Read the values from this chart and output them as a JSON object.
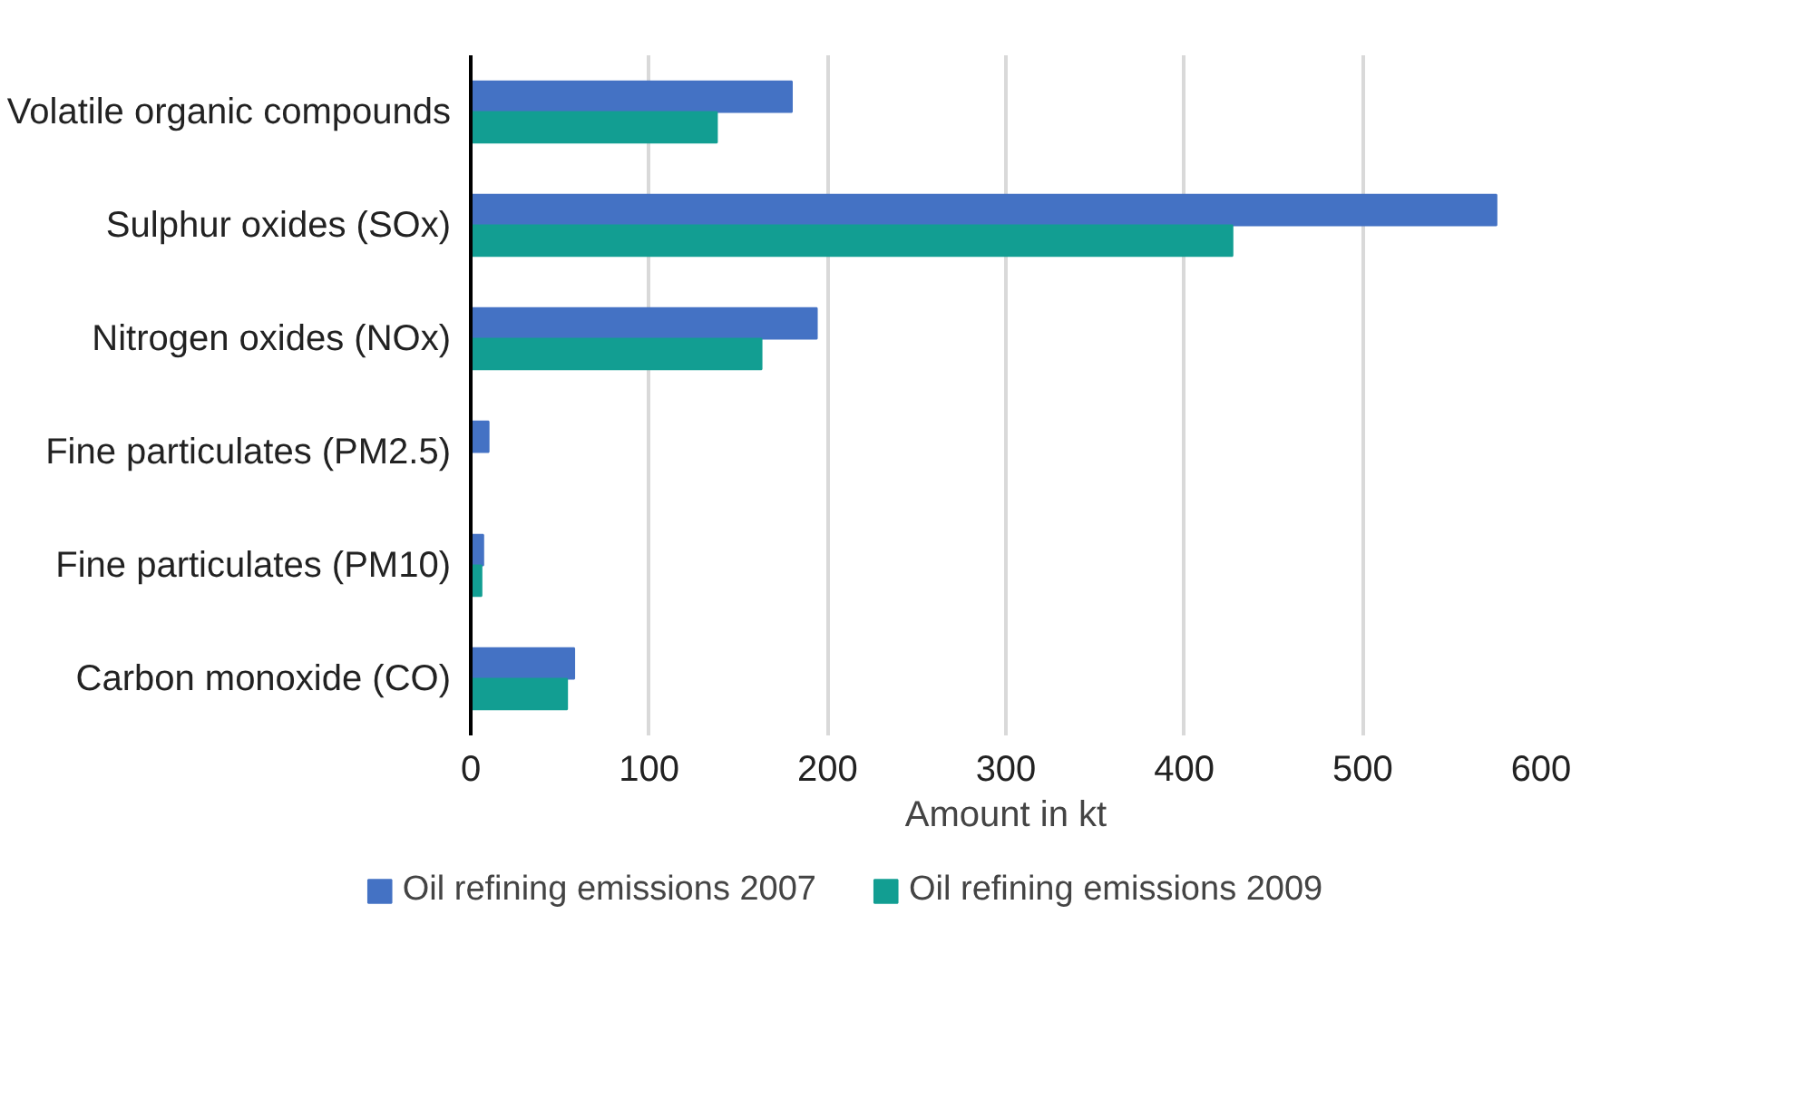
{
  "chart_data": {
    "type": "bar",
    "orientation": "horizontal",
    "xlabel": "Amount in kt",
    "categories": [
      "Volatile organic compounds",
      "Sulphur oxides (SOx)",
      "Nitrogen oxides (NOx)",
      "Fine particulates (PM2.5)",
      "Fine particulates (PM10)",
      "Carbon monoxide (CO)"
    ],
    "series": [
      {
        "name": "Oil refining emissions 2007",
        "color": "#4472c4",
        "values": [
          180,
          575,
          194,
          10,
          7,
          58
        ]
      },
      {
        "name": "Oil refining emissions 2009",
        "color": "#129e92",
        "values": [
          138,
          427,
          163,
          null,
          6,
          54
        ]
      }
    ],
    "xlim": [
      0,
      600
    ],
    "xticks": [
      0,
      100,
      200,
      300,
      400,
      500,
      600
    ],
    "grid": "x",
    "legend": "bottom"
  }
}
